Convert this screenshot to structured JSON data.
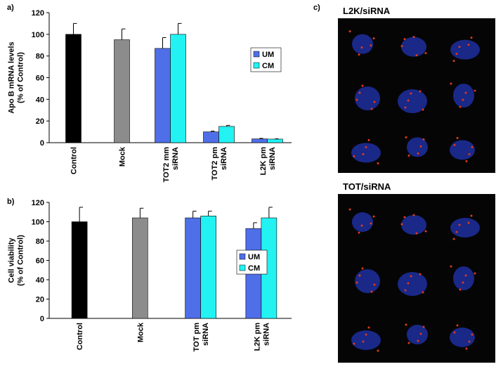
{
  "chart_data": [
    {
      "type": "bar",
      "panel_label": "a)",
      "ylabel": [
        "Apo B mRNA levels",
        "(% of Control)"
      ],
      "categories": [
        [
          "Control"
        ],
        [
          "Mock"
        ],
        [
          "TOT2 mm",
          "siRNA"
        ],
        [
          "TOT2 pm",
          "siRNA"
        ],
        [
          "L2K pm",
          "siRNA"
        ]
      ],
      "values": [
        100,
        95,
        null,
        null,
        null
      ],
      "errors": [
        10,
        10,
        null,
        null,
        null
      ],
      "colors": [
        "#000000",
        "#8c8c8c",
        null,
        null,
        null
      ],
      "series": [
        {
          "name": "UM",
          "color": "#4f6fe8",
          "values": [
            null,
            null,
            87,
            10,
            3.5
          ],
          "errors": [
            null,
            null,
            10,
            0.7,
            0.5
          ]
        },
        {
          "name": "CM",
          "color": "#22f2f2",
          "values": [
            null,
            null,
            100,
            15,
            3.3
          ],
          "errors": [
            null,
            null,
            10,
            1,
            0.3
          ]
        }
      ],
      "ylim": [
        0,
        120
      ],
      "yticks": [
        0,
        20,
        40,
        60,
        80,
        100,
        120
      ]
    },
    {
      "type": "bar",
      "panel_label": "b)",
      "ylabel": [
        "Cell viability",
        "(% of Control)"
      ],
      "categories": [
        [
          "Control"
        ],
        [
          "Mock"
        ],
        [
          "TOT pm",
          "siRNA"
        ],
        [
          "L2K pm",
          "siRNA"
        ]
      ],
      "values": [
        100,
        104,
        null,
        null
      ],
      "errors": [
        15,
        10,
        null,
        null
      ],
      "colors": [
        "#000000",
        "#8c8c8c",
        null,
        null
      ],
      "series": [
        {
          "name": "UM",
          "color": "#4f6fe8",
          "values": [
            null,
            null,
            104,
            93
          ],
          "errors": [
            null,
            null,
            7,
            6
          ]
        },
        {
          "name": "CM",
          "color": "#22f2f2",
          "values": [
            null,
            null,
            106,
            104
          ],
          "errors": [
            null,
            null,
            5,
            11
          ]
        }
      ],
      "ylim": [
        0,
        120
      ],
      "yticks": [
        0,
        20,
        40,
        60,
        80,
        100,
        120
      ]
    }
  ],
  "images_panel": {
    "label": "c)",
    "images": [
      {
        "title": "L2K/siRNA"
      },
      {
        "title": "TOT/siRNA"
      }
    ]
  }
}
